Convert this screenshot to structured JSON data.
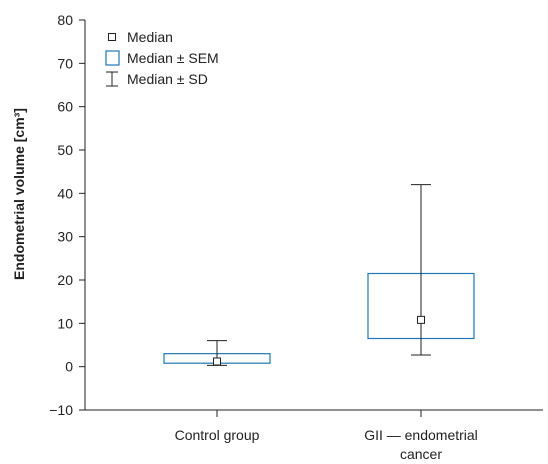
{
  "chart_data": {
    "type": "box",
    "title": "",
    "xlabel": "",
    "ylabel": "Endometrial volume [cm³]",
    "ylim": [
      -10,
      80
    ],
    "yticks": [
      -10,
      0,
      10,
      20,
      30,
      40,
      50,
      60,
      70,
      80
    ],
    "grid": false,
    "legend_position": "top-left",
    "legend": [
      {
        "kind": "median",
        "label": "Median"
      },
      {
        "kind": "sem",
        "label": "Median ± SEM"
      },
      {
        "kind": "sd",
        "label": "Median ± SD"
      }
    ],
    "categories": [
      "Control group",
      "GII — endometrial cancer"
    ],
    "category_label_lines": [
      [
        "Control group"
      ],
      [
        "GII — endometrial",
        "cancer"
      ]
    ],
    "groups": [
      {
        "category": "Control group",
        "median": 1.2,
        "sem_low": 0.8,
        "sem_high": 3.0,
        "sd_low": 0.3,
        "sd_high": 6.0
      },
      {
        "category": "GII — endometrial cancer",
        "median": 10.8,
        "sem_low": 6.5,
        "sem_high": 21.5,
        "sd_low": 2.7,
        "sd_high": 42.0
      }
    ],
    "colors": {
      "box": "#1f77b4",
      "line": "#222222",
      "axis": "#222222"
    }
  }
}
